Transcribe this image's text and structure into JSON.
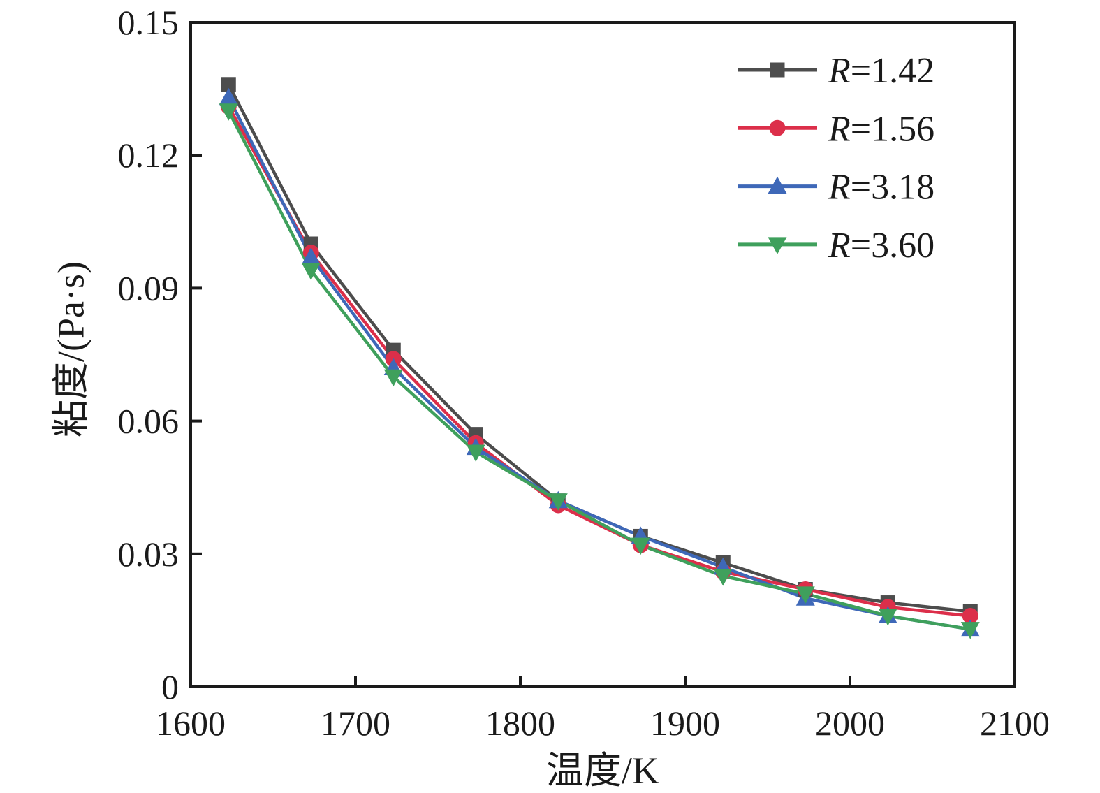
{
  "chart_data": {
    "type": "line",
    "title": "",
    "xlabel": "温度/K",
    "ylabel": "粘度/(Pa·s)",
    "xlim": [
      1600,
      2100
    ],
    "ylim": [
      0,
      0.15
    ],
    "x_ticks": [
      1600,
      1700,
      1800,
      1900,
      2000,
      2100
    ],
    "x_tick_labels": [
      "1600",
      "1700",
      "1800",
      "1900",
      "2000",
      "2100"
    ],
    "y_ticks": [
      0,
      0.03,
      0.06,
      0.09,
      0.12,
      0.15
    ],
    "y_tick_labels": [
      "0",
      "0.03",
      "0.06",
      "0.09",
      "0.12",
      "0.15"
    ],
    "grid": false,
    "legend_position": "top-right",
    "frame_color": "#1a1a1a",
    "x": [
      1623,
      1673,
      1723,
      1773,
      1823,
      1873,
      1923,
      1973,
      2023,
      2073
    ],
    "series": [
      {
        "name": "R=1.42",
        "marker": "square",
        "color": "#4d4d4d",
        "values": [
          0.136,
          0.1,
          0.076,
          0.057,
          0.042,
          0.034,
          0.028,
          0.022,
          0.019,
          0.017
        ]
      },
      {
        "name": "R=1.56",
        "marker": "circle",
        "color": "#dc2f4a",
        "values": [
          0.131,
          0.098,
          0.074,
          0.055,
          0.041,
          0.032,
          0.026,
          0.022,
          0.018,
          0.016
        ]
      },
      {
        "name": "R=3.18",
        "marker": "triangle-up",
        "color": "#3e68b8",
        "values": [
          0.133,
          0.097,
          0.072,
          0.054,
          0.042,
          0.034,
          0.027,
          0.02,
          0.016,
          0.013
        ]
      },
      {
        "name": "R=3.60",
        "marker": "triangle-down",
        "color": "#3fa05c",
        "values": [
          0.13,
          0.094,
          0.07,
          0.053,
          0.042,
          0.032,
          0.025,
          0.021,
          0.016,
          0.013
        ]
      }
    ]
  }
}
